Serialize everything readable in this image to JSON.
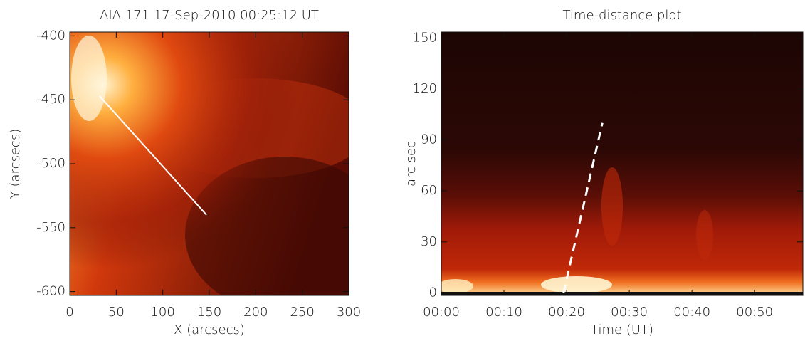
{
  "chart_data": [
    {
      "type": "image",
      "title": "AIA 171 17-Sep-2010 00:25:12 UT",
      "x_label": "X (arcsecs)",
      "y_label": "Y (arcsecs)",
      "xlim": [
        0,
        300
      ],
      "ylim": [
        -603,
        -397
      ],
      "xticks": [
        0,
        50,
        100,
        150,
        200,
        250,
        300
      ],
      "yticks": [
        -600,
        -550,
        -500,
        -450,
        -400
      ],
      "line": {
        "x": [
          32,
          147
        ],
        "y": [
          -447,
          -540
        ],
        "color": "#ffffff",
        "dashed": false
      }
    },
    {
      "type": "image",
      "title": "Time-distance plot",
      "x_label": "Time (UT)",
      "y_label": "arc sec",
      "xlim": [
        0,
        57.7
      ],
      "ylim": [
        -1.5,
        153.5
      ],
      "xticks": [
        {
          "value": 0,
          "label": "00:00"
        },
        {
          "value": 10,
          "label": "00:10"
        },
        {
          "value": 20,
          "label": "00:20"
        },
        {
          "value": 30,
          "label": "00:30"
        },
        {
          "value": 40,
          "label": "00:40"
        },
        {
          "value": 50,
          "label": "00:50"
        }
      ],
      "yticks": [
        0,
        30,
        60,
        90,
        120,
        150
      ],
      "line": {
        "x": [
          19.5,
          25.7
        ],
        "y": [
          0,
          100
        ],
        "color": "#ffffff",
        "dashed": true
      }
    }
  ]
}
